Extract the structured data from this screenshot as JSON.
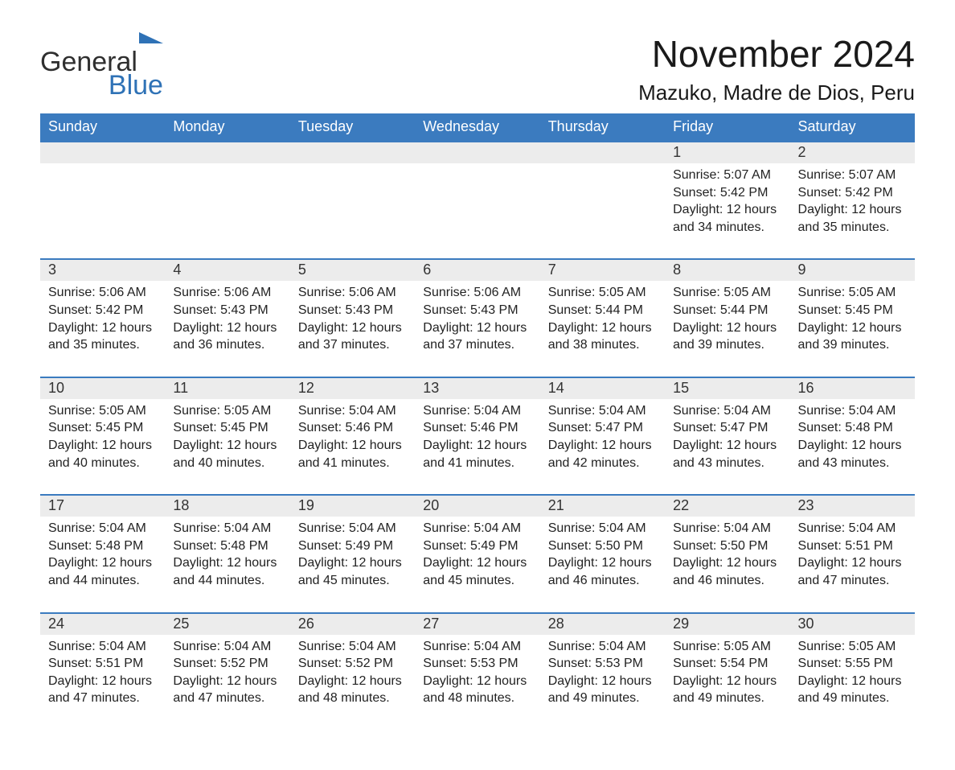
{
  "logo": {
    "part1": "General",
    "part2": "Blue"
  },
  "title": "November 2024",
  "location": "Mazuko, Madre de Dios, Peru",
  "colors": {
    "header_bg": "#3b7bbf",
    "header_text": "#ffffff",
    "row_sep": "#3b7bbf",
    "daynum_bg": "#ececec",
    "body_text": "#222222",
    "logo_blue": "#2f72b6",
    "logo_dark": "#2f2f2f",
    "page_bg": "#ffffff"
  },
  "typography": {
    "title_fontsize": 46,
    "location_fontsize": 26,
    "dayheader_fontsize": 18,
    "daynum_fontsize": 18,
    "body_fontsize": 16,
    "logo_fontsize": 34
  },
  "day_headers": [
    "Sunday",
    "Monday",
    "Tuesday",
    "Wednesday",
    "Thursday",
    "Friday",
    "Saturday"
  ],
  "labels": {
    "sunrise": "Sunrise:",
    "sunset": "Sunset:",
    "daylight": "Daylight:"
  },
  "weeks": [
    [
      {
        "empty": true
      },
      {
        "empty": true
      },
      {
        "empty": true
      },
      {
        "empty": true
      },
      {
        "empty": true
      },
      {
        "day": "1",
        "sunrise": "5:07 AM",
        "sunset": "5:42 PM",
        "daylight1": "12 hours",
        "daylight2": "and 34 minutes."
      },
      {
        "day": "2",
        "sunrise": "5:07 AM",
        "sunset": "5:42 PM",
        "daylight1": "12 hours",
        "daylight2": "and 35 minutes."
      }
    ],
    [
      {
        "day": "3",
        "sunrise": "5:06 AM",
        "sunset": "5:42 PM",
        "daylight1": "12 hours",
        "daylight2": "and 35 minutes."
      },
      {
        "day": "4",
        "sunrise": "5:06 AM",
        "sunset": "5:43 PM",
        "daylight1": "12 hours",
        "daylight2": "and 36 minutes."
      },
      {
        "day": "5",
        "sunrise": "5:06 AM",
        "sunset": "5:43 PM",
        "daylight1": "12 hours",
        "daylight2": "and 37 minutes."
      },
      {
        "day": "6",
        "sunrise": "5:06 AM",
        "sunset": "5:43 PM",
        "daylight1": "12 hours",
        "daylight2": "and 37 minutes."
      },
      {
        "day": "7",
        "sunrise": "5:05 AM",
        "sunset": "5:44 PM",
        "daylight1": "12 hours",
        "daylight2": "and 38 minutes."
      },
      {
        "day": "8",
        "sunrise": "5:05 AM",
        "sunset": "5:44 PM",
        "daylight1": "12 hours",
        "daylight2": "and 39 minutes."
      },
      {
        "day": "9",
        "sunrise": "5:05 AM",
        "sunset": "5:45 PM",
        "daylight1": "12 hours",
        "daylight2": "and 39 minutes."
      }
    ],
    [
      {
        "day": "10",
        "sunrise": "5:05 AM",
        "sunset": "5:45 PM",
        "daylight1": "12 hours",
        "daylight2": "and 40 minutes."
      },
      {
        "day": "11",
        "sunrise": "5:05 AM",
        "sunset": "5:45 PM",
        "daylight1": "12 hours",
        "daylight2": "and 40 minutes."
      },
      {
        "day": "12",
        "sunrise": "5:04 AM",
        "sunset": "5:46 PM",
        "daylight1": "12 hours",
        "daylight2": "and 41 minutes."
      },
      {
        "day": "13",
        "sunrise": "5:04 AM",
        "sunset": "5:46 PM",
        "daylight1": "12 hours",
        "daylight2": "and 41 minutes."
      },
      {
        "day": "14",
        "sunrise": "5:04 AM",
        "sunset": "5:47 PM",
        "daylight1": "12 hours",
        "daylight2": "and 42 minutes."
      },
      {
        "day": "15",
        "sunrise": "5:04 AM",
        "sunset": "5:47 PM",
        "daylight1": "12 hours",
        "daylight2": "and 43 minutes."
      },
      {
        "day": "16",
        "sunrise": "5:04 AM",
        "sunset": "5:48 PM",
        "daylight1": "12 hours",
        "daylight2": "and 43 minutes."
      }
    ],
    [
      {
        "day": "17",
        "sunrise": "5:04 AM",
        "sunset": "5:48 PM",
        "daylight1": "12 hours",
        "daylight2": "and 44 minutes."
      },
      {
        "day": "18",
        "sunrise": "5:04 AM",
        "sunset": "5:48 PM",
        "daylight1": "12 hours",
        "daylight2": "and 44 minutes."
      },
      {
        "day": "19",
        "sunrise": "5:04 AM",
        "sunset": "5:49 PM",
        "daylight1": "12 hours",
        "daylight2": "and 45 minutes."
      },
      {
        "day": "20",
        "sunrise": "5:04 AM",
        "sunset": "5:49 PM",
        "daylight1": "12 hours",
        "daylight2": "and 45 minutes."
      },
      {
        "day": "21",
        "sunrise": "5:04 AM",
        "sunset": "5:50 PM",
        "daylight1": "12 hours",
        "daylight2": "and 46 minutes."
      },
      {
        "day": "22",
        "sunrise": "5:04 AM",
        "sunset": "5:50 PM",
        "daylight1": "12 hours",
        "daylight2": "and 46 minutes."
      },
      {
        "day": "23",
        "sunrise": "5:04 AM",
        "sunset": "5:51 PM",
        "daylight1": "12 hours",
        "daylight2": "and 47 minutes."
      }
    ],
    [
      {
        "day": "24",
        "sunrise": "5:04 AM",
        "sunset": "5:51 PM",
        "daylight1": "12 hours",
        "daylight2": "and 47 minutes."
      },
      {
        "day": "25",
        "sunrise": "5:04 AM",
        "sunset": "5:52 PM",
        "daylight1": "12 hours",
        "daylight2": "and 47 minutes."
      },
      {
        "day": "26",
        "sunrise": "5:04 AM",
        "sunset": "5:52 PM",
        "daylight1": "12 hours",
        "daylight2": "and 48 minutes."
      },
      {
        "day": "27",
        "sunrise": "5:04 AM",
        "sunset": "5:53 PM",
        "daylight1": "12 hours",
        "daylight2": "and 48 minutes."
      },
      {
        "day": "28",
        "sunrise": "5:04 AM",
        "sunset": "5:53 PM",
        "daylight1": "12 hours",
        "daylight2": "and 49 minutes."
      },
      {
        "day": "29",
        "sunrise": "5:05 AM",
        "sunset": "5:54 PM",
        "daylight1": "12 hours",
        "daylight2": "and 49 minutes."
      },
      {
        "day": "30",
        "sunrise": "5:05 AM",
        "sunset": "5:55 PM",
        "daylight1": "12 hours",
        "daylight2": "and 49 minutes."
      }
    ]
  ]
}
